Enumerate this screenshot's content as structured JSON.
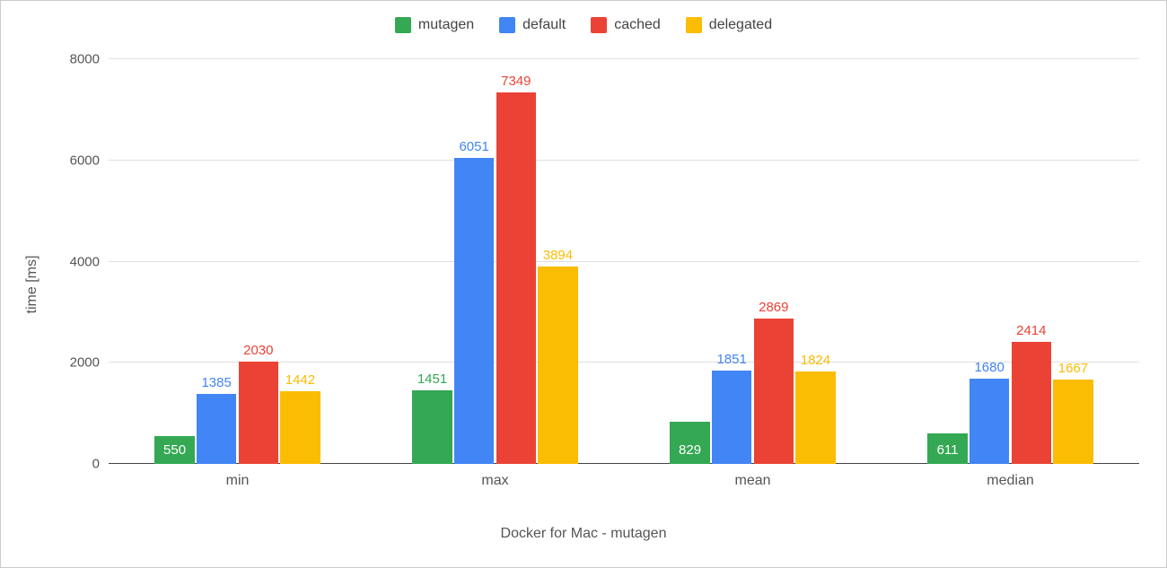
{
  "chart": {
    "type": "bar",
    "xlabel": "Docker for Mac - mutagen",
    "ylabel": "time [ms]",
    "ylim": [
      0,
      8000
    ],
    "ytick_step": 2000,
    "yticks": [
      0,
      2000,
      4000,
      6000,
      8000
    ],
    "background_color": "#ffffff",
    "grid_color": "#e0e0e0",
    "axis_color": "#444444",
    "label_color": "#555555",
    "label_fontsize": 16,
    "tick_fontsize": 15,
    "value_label_fontsize": 15,
    "bar_width": 0.95,
    "group_gap": 0.35,
    "categories": [
      "min",
      "max",
      "mean",
      "median"
    ],
    "series": [
      {
        "name": "mutagen",
        "color": "#34a853",
        "values": [
          550,
          1451,
          829,
          611
        ],
        "label_pos": [
          "inside",
          "above",
          "inside",
          "inside"
        ]
      },
      {
        "name": "default",
        "color": "#4285f4",
        "values": [
          1385,
          6051,
          1851,
          1680
        ],
        "label_pos": [
          "above",
          "above",
          "above",
          "above"
        ]
      },
      {
        "name": "cached",
        "color": "#ea4335",
        "values": [
          2030,
          7349,
          2869,
          2414
        ],
        "label_pos": [
          "above",
          "above",
          "above",
          "above"
        ]
      },
      {
        "name": "delegated",
        "color": "#fbbc04",
        "values": [
          1442,
          3894,
          1824,
          1667
        ],
        "label_pos": [
          "above",
          "above",
          "above",
          "above"
        ]
      }
    ],
    "legend_position": "top-center"
  }
}
